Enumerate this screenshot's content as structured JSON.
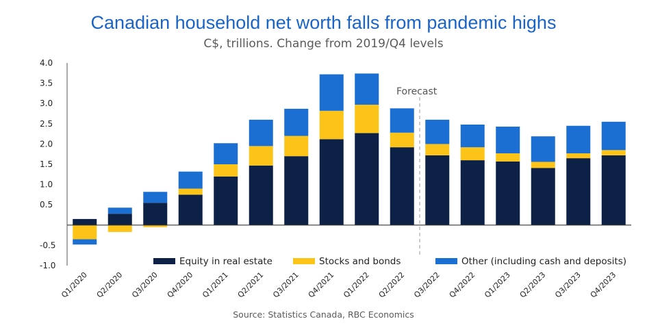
{
  "chart_data": {
    "type": "bar",
    "stacked": true,
    "title": "Canadian household net worth falls from pandemic highs",
    "subtitle": "C$, trillions. Change from 2019/Q4 levels",
    "source": "Source: Statistics Canada, RBC Economics",
    "categories": [
      "Q1/2020",
      "Q2/2020",
      "Q3/2020",
      "Q4/2020",
      "Q1/2021",
      "Q2/2021",
      "Q3/2021",
      "Q4/2021",
      "Q1/2022",
      "Q2/2022",
      "Q3/2022",
      "Q4/2022",
      "Q1/2023",
      "Q2/2023",
      "Q3/2023",
      "Q4/2023"
    ],
    "series": [
      {
        "name": "Equity in real estate",
        "color": "#0d2147",
        "values": [
          0.15,
          0.28,
          0.55,
          0.75,
          1.2,
          1.47,
          1.7,
          2.12,
          2.27,
          1.92,
          1.72,
          1.6,
          1.57,
          1.41,
          1.65,
          1.72
        ]
      },
      {
        "name": "Stocks and bonds",
        "color": "#fcc419",
        "values": [
          -0.35,
          -0.17,
          -0.05,
          0.15,
          0.3,
          0.48,
          0.5,
          0.7,
          0.7,
          0.36,
          0.28,
          0.32,
          0.2,
          0.15,
          0.12,
          0.13
        ]
      },
      {
        "name": "Other (including cash and deposits)",
        "color": "#1b6fd3",
        "values": [
          -0.13,
          0.15,
          0.27,
          0.42,
          0.52,
          0.65,
          0.67,
          0.9,
          0.77,
          0.6,
          0.6,
          0.56,
          0.66,
          0.63,
          0.68,
          0.7
        ]
      }
    ],
    "ylim": [
      -1.0,
      4.0
    ],
    "yticks": [
      {
        "value": 4.0,
        "label": "4.0"
      },
      {
        "value": 3.5,
        "label": "3.5"
      },
      {
        "value": 3.0,
        "label": "3.0"
      },
      {
        "value": 2.5,
        "label": "2.5"
      },
      {
        "value": 2.0,
        "label": "2.0"
      },
      {
        "value": 1.5,
        "label": "1.5"
      },
      {
        "value": 1.0,
        "label": "1.0"
      },
      {
        "value": 0.5,
        "label": "0.5"
      },
      {
        "value": -0.5,
        "label": "-0.5"
      },
      {
        "value": -1.0,
        "label": "-1.0"
      }
    ],
    "forecast_label": "Forecast",
    "forecast_start_index": 10,
    "legend_position": "bottom-right-inside",
    "grid": false
  }
}
